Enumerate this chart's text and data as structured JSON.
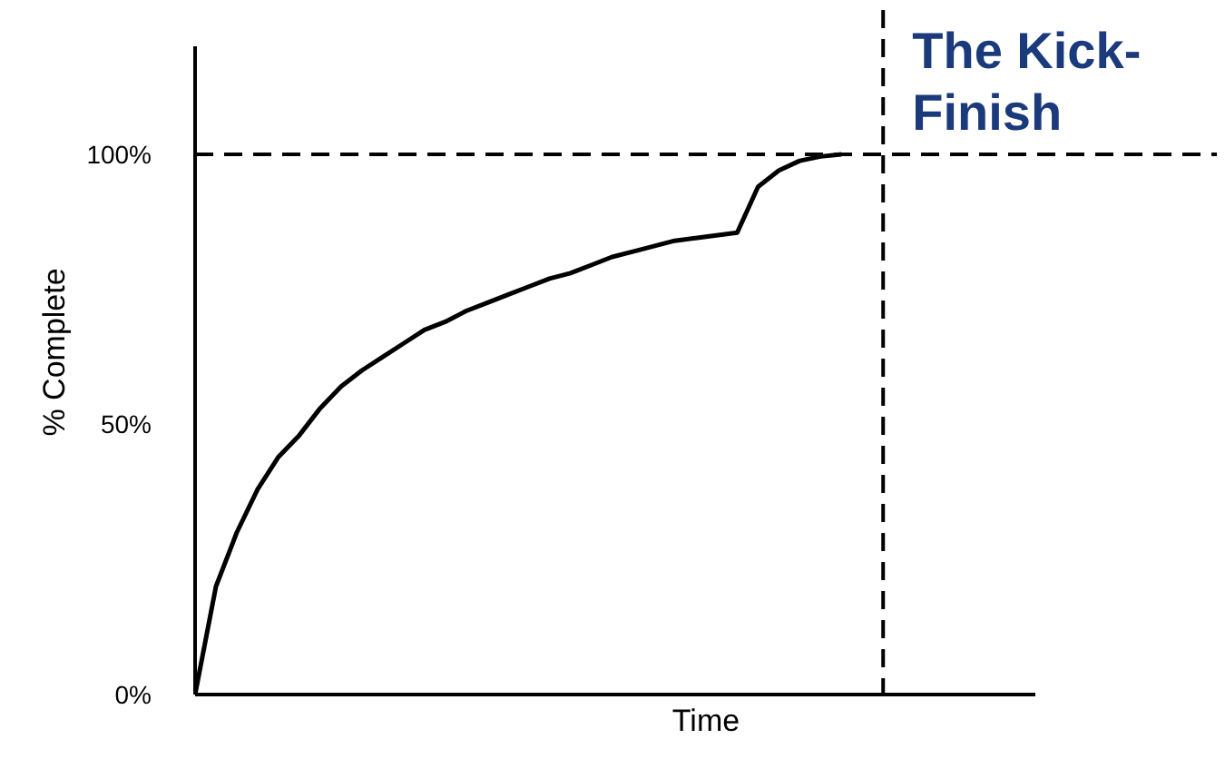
{
  "chart_data": {
    "type": "line",
    "ylabel": "% Complete",
    "xlabel": "Time",
    "ylim": [
      0,
      120
    ],
    "yticks": [
      {
        "value": 0,
        "label": "0%"
      },
      {
        "value": 50,
        "label": "50%"
      },
      {
        "value": 100,
        "label": "100%"
      }
    ],
    "categories": [
      null,
      null,
      null,
      null,
      null,
      null,
      null,
      null,
      null,
      null,
      null,
      null,
      null,
      null,
      null,
      null,
      null,
      null,
      null,
      null,
      null,
      null,
      null,
      null,
      null,
      null,
      null,
      null,
      null,
      null,
      null,
      null,
      null,
      null
    ],
    "tick_labels": "y",
    "grid": false,
    "marker": "none",
    "line_style": "solid",
    "series": [
      {
        "color": "#000000",
        "values": [
          0,
          20,
          30,
          38,
          44,
          48,
          53,
          57,
          60,
          62.5,
          65,
          67.5,
          69,
          71,
          72.5,
          74,
          75.5,
          77,
          78,
          79.5,
          81,
          82,
          83,
          84,
          84.5,
          85,
          85.5,
          94,
          97,
          98.8,
          99.6,
          100,
          null,
          null
        ]
      }
    ],
    "ref_lines": [
      {
        "axis": "y",
        "value": 100,
        "line_style": "dashed",
        "color": "#000000"
      },
      {
        "axis": "x",
        "line_style": "dashed",
        "color": "#000000",
        "label": "The Kick-\nFinish"
      }
    ]
  }
}
